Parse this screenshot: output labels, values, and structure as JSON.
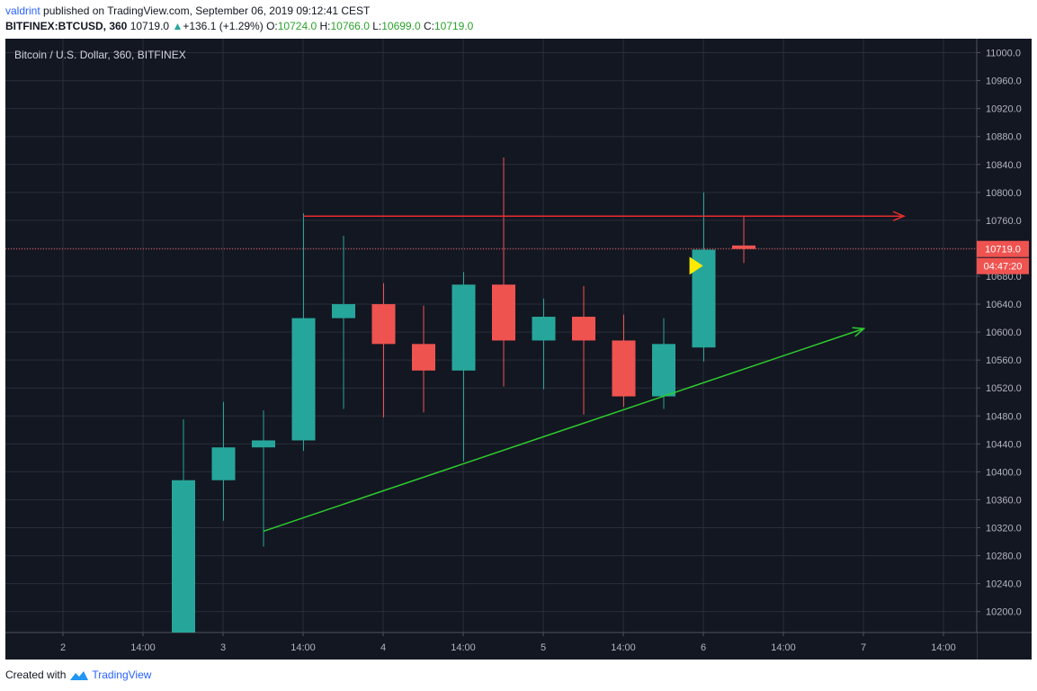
{
  "header": {
    "user": "valdrint",
    "published": "published on TradingView.com, September 06, 2019 09:12:41 CEST",
    "symbol": "BITFINEX:BTCUSD, 360",
    "last": "10719.0",
    "change": "+136.1 (+1.29%)",
    "o_label": "O:",
    "o_value": "10724.0",
    "h_label": "H:",
    "h_value": "10766.0",
    "l_label": "L:",
    "l_value": "10699.0",
    "c_label": "C:",
    "c_value": "10719.0"
  },
  "footer": {
    "created_with": "Created with",
    "brand": "TradingView"
  },
  "colors": {
    "background": "#131722",
    "grid": "#2a2e39",
    "up": "#26a69a",
    "down": "#ef5350",
    "resistance": "#e52d2d",
    "support": "#2ecc2e",
    "marker": "#ffeb00"
  },
  "chart_data": {
    "type": "candlestick",
    "legend": "Bitcoin / U.S. Dollar, 360, BITFINEX",
    "ylim": [
      10170,
      11020
    ],
    "y_ticks": [
      11000,
      10960,
      10920,
      10880,
      10840,
      10800,
      10760,
      10720,
      10680,
      10640,
      10600,
      10560,
      10520,
      10480,
      10440,
      10400,
      10360,
      10320,
      10280,
      10240,
      10200
    ],
    "y_tick_labels": [
      "11000.0",
      "10960.0",
      "10920.0",
      "10880.0",
      "10840.0",
      "10800.0",
      "10760.0",
      "10720.0",
      "10680.0",
      "10640.0",
      "10600.0",
      "10560.0",
      "10520.0",
      "10480.0",
      "10440.0",
      "10400.0",
      "10360.0",
      "10320.0",
      "10280.0",
      "10240.0",
      "10200.0"
    ],
    "x_ticks": [
      "2",
      "14:00",
      "3",
      "14:00",
      "4",
      "14:00",
      "5",
      "14:00",
      "6",
      "14:00",
      "7",
      "14:00"
    ],
    "last_price_label": "10719.0",
    "countdown_label": "04:47:20",
    "last_price": 10719,
    "candles": [
      {
        "o": 10170,
        "h": 10475,
        "l": 10170,
        "c": 10388
      },
      {
        "o": 10388,
        "h": 10500,
        "l": 10330,
        "c": 10435
      },
      {
        "o": 10435,
        "h": 10488,
        "l": 10293,
        "c": 10445
      },
      {
        "o": 10445,
        "h": 10770,
        "l": 10430,
        "c": 10620
      },
      {
        "o": 10620,
        "h": 10738,
        "l": 10490,
        "c": 10640
      },
      {
        "o": 10640,
        "h": 10670,
        "l": 10478,
        "c": 10583
      },
      {
        "o": 10583,
        "h": 10638,
        "l": 10485,
        "c": 10545
      },
      {
        "o": 10545,
        "h": 10686,
        "l": 10415,
        "c": 10668
      },
      {
        "o": 10668,
        "h": 10850,
        "l": 10522,
        "c": 10588
      },
      {
        "o": 10588,
        "h": 10648,
        "l": 10518,
        "c": 10622
      },
      {
        "o": 10622,
        "h": 10666,
        "l": 10482,
        "c": 10588
      },
      {
        "o": 10588,
        "h": 10625,
        "l": 10493,
        "c": 10508
      },
      {
        "o": 10508,
        "h": 10620,
        "l": 10490,
        "c": 10583
      },
      {
        "o": 10578,
        "h": 10800,
        "l": 10558,
        "c": 10718
      },
      {
        "o": 10724,
        "h": 10766,
        "l": 10699,
        "c": 10719
      }
    ],
    "resistance_line": {
      "start_index": 3,
      "end_index": 18,
      "price": 10766
    },
    "support_line": {
      "start_index": 2,
      "start_price": 10315,
      "end_index": 17,
      "end_price": 10605
    },
    "marker": {
      "index": 12.8,
      "price": 10695
    }
  }
}
